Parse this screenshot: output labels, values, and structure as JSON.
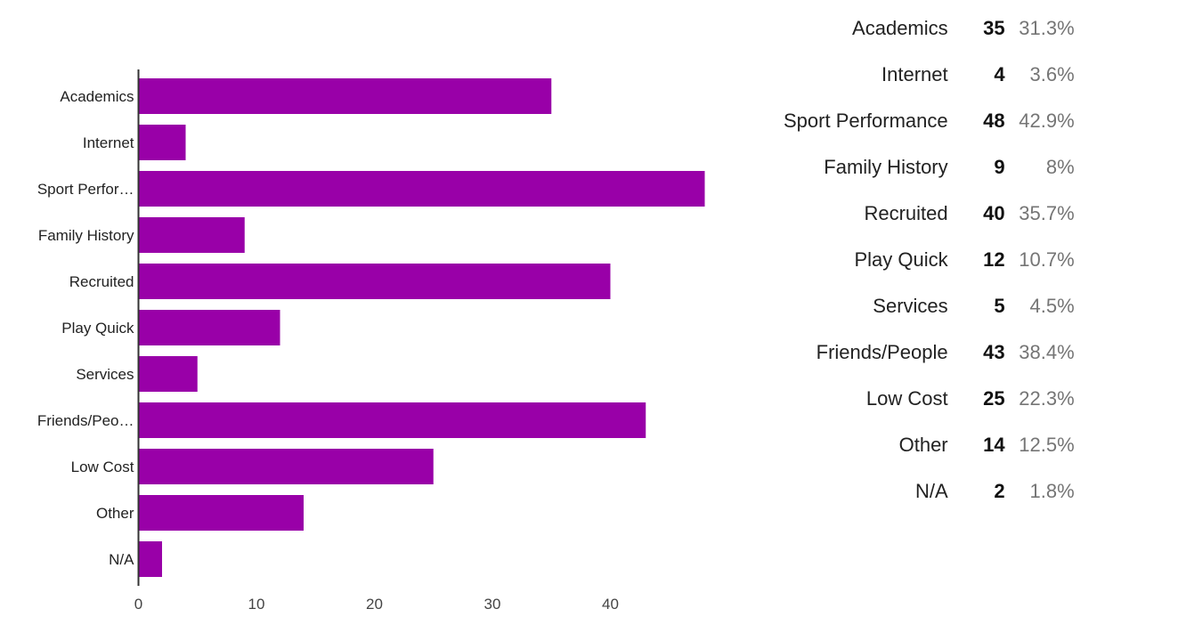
{
  "chart_data": {
    "type": "bar",
    "orientation": "horizontal",
    "color": "#9900a8",
    "categories": [
      "Academics",
      "Internet",
      "Sport Performance",
      "Family History",
      "Recruited",
      "Play Quick",
      "Services",
      "Friends/People",
      "Low Cost",
      "Other",
      "N/A"
    ],
    "category_tick_labels": [
      "Academics",
      "Internet",
      "Sport Perfor…",
      "Family History",
      "Recruited",
      "Play Quick",
      "Services",
      "Friends/Peo…",
      "Low Cost",
      "Other",
      "N/A"
    ],
    "values": [
      35,
      4,
      48,
      9,
      40,
      12,
      5,
      43,
      25,
      14,
      2
    ],
    "percents": [
      "31.3%",
      "3.6%",
      "42.9%",
      "8%",
      "35.7%",
      "10.7%",
      "4.5%",
      "38.4%",
      "22.3%",
      "12.5%",
      "1.8%"
    ],
    "x_ticks": [
      0,
      10,
      20,
      30,
      40
    ],
    "xlim": [
      0,
      50
    ],
    "grid": false,
    "legend_placement": "right",
    "title": "",
    "xlabel": "",
    "ylabel": ""
  }
}
